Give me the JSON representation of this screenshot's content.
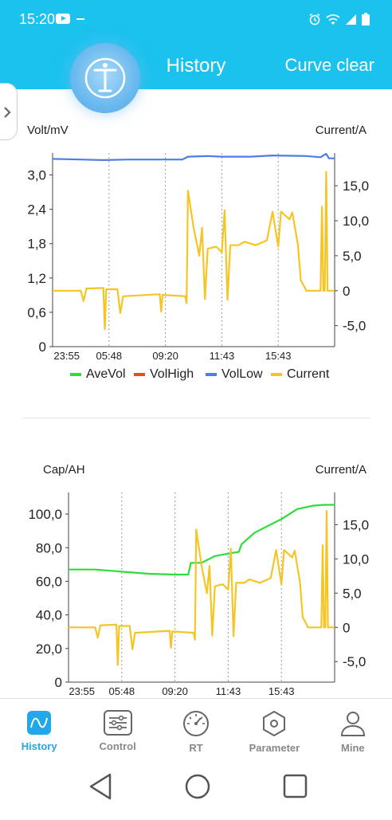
{
  "status_bar": {
    "time": "15:20",
    "icons": [
      "youtube-icon",
      "alarm-icon",
      "wifi-icon",
      "signal-icon",
      "battery-icon"
    ]
  },
  "header": {
    "title": "History",
    "action": "Curve clear"
  },
  "nav": {
    "items": [
      {
        "label": "History",
        "icon": "wave-icon",
        "active": true
      },
      {
        "label": "Control",
        "icon": "sliders-icon",
        "active": false
      },
      {
        "label": "RT",
        "icon": "gauge-icon",
        "active": false
      },
      {
        "label": "Parameter",
        "icon": "hexagon-nut-icon",
        "active": false
      },
      {
        "label": "Mine",
        "icon": "person-icon",
        "active": false
      }
    ]
  },
  "colors": {
    "accent": "#1cc2ee",
    "ave": "#2edc3c",
    "high": "#f0462a",
    "low": "#4f7de0",
    "current": "#f5c524"
  },
  "chart_data": [
    {
      "type": "line",
      "ylabel": "Volt/mV",
      "y2label": "Current/A",
      "ylim": [
        0,
        3.3
      ],
      "y_ticks": [
        "0",
        "0,6",
        "1,2",
        "1,8",
        "2,4",
        "3,0"
      ],
      "y2lim": [
        -8,
        19
      ],
      "y2_ticks": [
        "-5,0",
        "0",
        "5,0",
        "10,0",
        "15,0"
      ],
      "x_ticks": [
        "23:55",
        "05:48",
        "09:20",
        "11:43",
        "15:43"
      ],
      "legend": [
        "AveVol",
        "VolHigh",
        "VolLow",
        "Current"
      ],
      "x": [
        0,
        0.2,
        0.45,
        0.6,
        0.75,
        1
      ],
      "series": [
        {
          "name": "VolLow",
          "axis": "left",
          "values": [
            [
              0,
              3.28
            ],
            [
              0.1,
              3.27
            ],
            [
              0.18,
              3.26
            ],
            [
              0.27,
              3.27
            ],
            [
              0.46,
              3.27
            ],
            [
              0.48,
              3.32
            ],
            [
              0.55,
              3.33
            ],
            [
              0.6,
              3.32
            ],
            [
              0.7,
              3.32
            ],
            [
              0.78,
              3.34
            ],
            [
              0.9,
              3.33
            ],
            [
              0.95,
              3.31
            ],
            [
              0.97,
              3.37
            ],
            [
              0.98,
              3.29
            ],
            [
              1,
              3.29
            ]
          ]
        },
        {
          "name": "Current",
          "axis": "right",
          "values": [
            [
              0,
              0
            ],
            [
              0.1,
              0
            ],
            [
              0.11,
              -1.5
            ],
            [
              0.12,
              0.3
            ],
            [
              0.18,
              0.4
            ],
            [
              0.185,
              -5.5
            ],
            [
              0.19,
              0.2
            ],
            [
              0.23,
              0.2
            ],
            [
              0.24,
              -3.2
            ],
            [
              0.25,
              -0.8
            ],
            [
              0.38,
              -0.5
            ],
            [
              0.385,
              -3
            ],
            [
              0.39,
              -0.6
            ],
            [
              0.47,
              -0.8
            ],
            [
              0.475,
              -1.8
            ],
            [
              0.48,
              14.3
            ],
            [
              0.5,
              9
            ],
            [
              0.52,
              5
            ],
            [
              0.53,
              9
            ],
            [
              0.54,
              -1.2
            ],
            [
              0.55,
              6
            ],
            [
              0.58,
              6.3
            ],
            [
              0.6,
              5.5
            ],
            [
              0.61,
              11.5
            ],
            [
              0.62,
              -1.3
            ],
            [
              0.63,
              6.5
            ],
            [
              0.66,
              6.5
            ],
            [
              0.68,
              7
            ],
            [
              0.72,
              6.5
            ],
            [
              0.76,
              7.2
            ],
            [
              0.78,
              11.3
            ],
            [
              0.8,
              6.3
            ],
            [
              0.81,
              11.3
            ],
            [
              0.84,
              10.2
            ],
            [
              0.85,
              11.2
            ],
            [
              0.87,
              6.5
            ],
            [
              0.88,
              1.5
            ],
            [
              0.9,
              0
            ],
            [
              0.95,
              0
            ],
            [
              0.955,
              12
            ],
            [
              0.96,
              0
            ],
            [
              0.965,
              0
            ],
            [
              0.97,
              17
            ],
            [
              0.975,
              0
            ],
            [
              1,
              0
            ]
          ]
        }
      ]
    },
    {
      "type": "line",
      "ylabel": "Cap/AH",
      "y2label": "Current/A",
      "ylim": [
        0,
        110
      ],
      "y_ticks": [
        "0",
        "20,0",
        "40,0",
        "60,0",
        "80,0",
        "100,0"
      ],
      "y2lim": [
        -8,
        19
      ],
      "y2_ticks": [
        "-5,0",
        "0",
        "5,0",
        "10,0",
        "15,0"
      ],
      "x_ticks": [
        "23:55",
        "05:48",
        "09:20",
        "11:43",
        "15:43"
      ],
      "legend": [],
      "series": [
        {
          "name": "AveVol",
          "axis": "left",
          "values": [
            [
              0,
              67
            ],
            [
              0.1,
              67
            ],
            [
              0.18,
              66
            ],
            [
              0.22,
              65.5
            ],
            [
              0.3,
              64.5
            ],
            [
              0.4,
              64
            ],
            [
              0.45,
              64
            ],
            [
              0.46,
              71
            ],
            [
              0.5,
              71
            ],
            [
              0.55,
              75
            ],
            [
              0.62,
              77
            ],
            [
              0.64,
              77.5
            ],
            [
              0.65,
              82
            ],
            [
              0.7,
              89
            ],
            [
              0.8,
              97
            ],
            [
              0.86,
              103
            ],
            [
              0.92,
              105
            ],
            [
              0.96,
              105.5
            ],
            [
              1,
              105.5
            ]
          ]
        },
        {
          "name": "Current",
          "axis": "right",
          "values": [
            [
              0,
              0
            ],
            [
              0.1,
              0
            ],
            [
              0.11,
              -1.5
            ],
            [
              0.12,
              0.3
            ],
            [
              0.18,
              0.4
            ],
            [
              0.185,
              -5.5
            ],
            [
              0.19,
              0.2
            ],
            [
              0.23,
              0.2
            ],
            [
              0.24,
              -3.2
            ],
            [
              0.25,
              -0.8
            ],
            [
              0.38,
              -0.5
            ],
            [
              0.385,
              -3
            ],
            [
              0.39,
              -0.6
            ],
            [
              0.47,
              -0.8
            ],
            [
              0.475,
              -1.8
            ],
            [
              0.48,
              14.3
            ],
            [
              0.5,
              9
            ],
            [
              0.52,
              5
            ],
            [
              0.53,
              9
            ],
            [
              0.54,
              -1.2
            ],
            [
              0.55,
              6
            ],
            [
              0.58,
              6.3
            ],
            [
              0.6,
              5.5
            ],
            [
              0.61,
              11.5
            ],
            [
              0.62,
              -1.3
            ],
            [
              0.63,
              6.5
            ],
            [
              0.66,
              6.5
            ],
            [
              0.68,
              7
            ],
            [
              0.72,
              6.5
            ],
            [
              0.76,
              7.2
            ],
            [
              0.78,
              11.3
            ],
            [
              0.8,
              6.3
            ],
            [
              0.81,
              11.3
            ],
            [
              0.84,
              10.2
            ],
            [
              0.85,
              11.2
            ],
            [
              0.87,
              6.5
            ],
            [
              0.88,
              1.5
            ],
            [
              0.9,
              0
            ],
            [
              0.95,
              0
            ],
            [
              0.955,
              12
            ],
            [
              0.96,
              0
            ],
            [
              0.965,
              0
            ],
            [
              0.97,
              17
            ],
            [
              0.975,
              0
            ],
            [
              1,
              0
            ]
          ]
        }
      ]
    }
  ]
}
